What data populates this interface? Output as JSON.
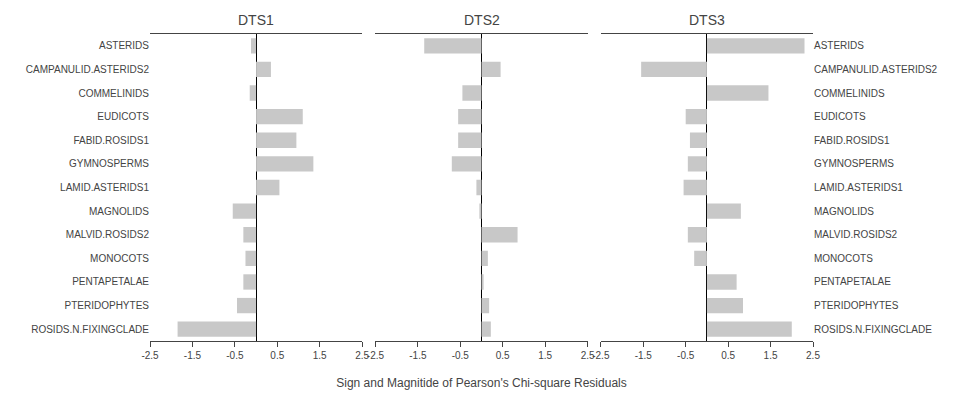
{
  "chart_data": [
    {
      "type": "bar",
      "orientation": "horizontal",
      "title": "DTS1",
      "categories": [
        "ASTERIDS",
        "CAMPANULID.ASTERIDS2",
        "COMMELINIDS",
        "EUDICOTS",
        "FABID.ROSIDS1",
        "GYMNOSPERMS",
        "LAMID.ASTERIDS1",
        "MAGNOLIDS",
        "MALVID.ROSIDS2",
        "MONOCOTS",
        "PENTAPETALAE",
        "PTERIDOPHYTES",
        "ROSIDS.N.FIXINGCLADE"
      ],
      "values": [
        -0.12,
        0.35,
        -0.15,
        1.1,
        0.95,
        1.35,
        0.55,
        -0.55,
        -0.3,
        -0.25,
        -0.3,
        -0.45,
        -1.85
      ],
      "color": "#c8c8c8",
      "xlim": [
        -2.5,
        2.5
      ],
      "xticks": [
        -2.5,
        -1.5,
        -0.5,
        0.5,
        1.5,
        2.5
      ],
      "grid": false
    },
    {
      "type": "bar",
      "orientation": "horizontal",
      "title": "DTS2",
      "xlabel": "Sign and Magnitide of Pearson's Chi-square Residuals",
      "categories": [
        "ASTERIDS",
        "CAMPANULID.ASTERIDS2",
        "COMMELINIDS",
        "EUDICOTS",
        "FABID.ROSIDS1",
        "GYMNOSPERMS",
        "LAMID.ASTERIDS1",
        "MAGNOLIDS",
        "MALVID.ROSIDS2",
        "MONOCOTS",
        "PENTAPETALAE",
        "PTERIDOPHYTES",
        "ROSIDS.N.FIXINGCLADE"
      ],
      "values": [
        -1.35,
        0.45,
        -0.45,
        -0.55,
        -0.55,
        -0.7,
        -0.12,
        -0.05,
        0.85,
        0.15,
        0.05,
        0.18,
        0.22
      ],
      "color": "#c8c8c8",
      "xlim": [
        -2.5,
        2.5
      ],
      "xticks": [
        -2.5,
        -1.5,
        -0.5,
        0.5,
        1.5,
        2.5
      ],
      "tick_labels": "x",
      "grid": false
    },
    {
      "type": "bar",
      "orientation": "horizontal",
      "title": "DTS3",
      "categories": [
        "ASTERIDS",
        "CAMPANULID.ASTERIDS2",
        "COMMELINIDS",
        "EUDICOTS",
        "FABID.ROSIDS1",
        "GYMNOSPERMS",
        "LAMID.ASTERIDS1",
        "MAGNOLIDS",
        "MALVID.ROSIDS2",
        "MONOCOTS",
        "PENTAPETALAE",
        "PTERIDOPHYTES",
        "ROSIDS.N.FIXINGCLADE"
      ],
      "values": [
        2.3,
        -1.55,
        1.45,
        -0.5,
        -0.4,
        -0.45,
        -0.55,
        0.8,
        -0.45,
        -0.3,
        0.7,
        0.85,
        2.0
      ],
      "color": "#c8c8c8",
      "xlim": [
        -2.5,
        2.5
      ],
      "xticks": [
        -2.5,
        -1.5,
        -0.5,
        0.5,
        1.5,
        2.5
      ],
      "grid": false
    }
  ]
}
